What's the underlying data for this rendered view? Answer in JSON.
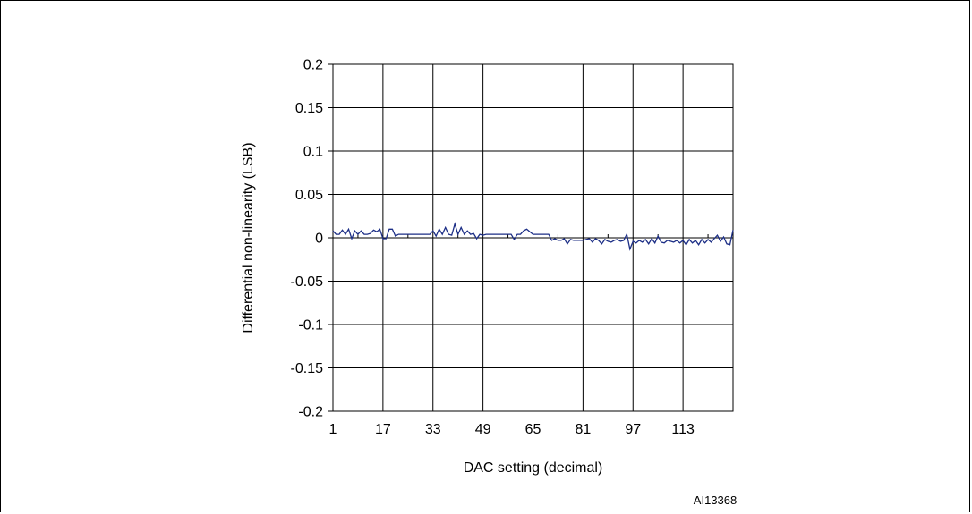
{
  "chart_data": {
    "type": "line",
    "title": "",
    "xlabel": "DAC setting (decimal)",
    "ylabel": "Differential non-linearity (LSB)",
    "xlim": [
      1,
      129
    ],
    "ylim": [
      -0.2,
      0.2
    ],
    "x_ticks": [
      1,
      17,
      33,
      49,
      65,
      81,
      97,
      113
    ],
    "x_tick_labels": [
      "1",
      "17",
      "33",
      "49",
      "65",
      "81",
      "97",
      "113"
    ],
    "y_ticks": [
      0.2,
      0.15,
      0.1,
      0.05,
      0,
      -0.05,
      -0.1,
      -0.15,
      -0.2
    ],
    "y_tick_labels": [
      "0.2",
      "0.15",
      "0.1",
      "0.05",
      "0",
      "-0.05",
      "-0.1",
      "-0.15",
      "-0.2"
    ],
    "grid": true,
    "line_color": "#1c2e86",
    "series": [
      {
        "x": [
          1,
          2,
          3,
          4,
          5,
          6,
          7,
          8,
          9,
          10,
          11,
          12,
          13,
          14,
          15,
          16,
          17,
          18,
          19,
          20,
          21,
          22,
          23,
          24,
          25,
          26,
          27,
          28,
          29,
          30,
          31,
          32,
          33,
          34,
          35,
          36,
          37,
          38,
          39,
          40,
          41,
          42,
          43,
          44,
          45,
          46,
          47,
          48,
          49,
          50,
          51,
          52,
          53,
          54,
          55,
          56,
          57,
          58,
          59,
          60,
          61,
          62,
          63,
          64,
          65,
          66,
          67,
          68,
          69,
          70,
          71,
          72,
          73,
          74,
          75,
          76,
          77,
          78,
          79,
          80,
          81,
          82,
          83,
          84,
          85,
          86,
          87,
          88,
          89,
          90,
          91,
          92,
          93,
          94,
          95,
          96,
          97,
          98,
          99,
          100,
          101,
          102,
          103,
          104,
          105,
          106,
          107,
          108,
          109,
          110,
          111,
          112,
          113,
          114,
          115,
          116,
          117,
          118,
          119,
          120,
          121,
          122,
          123,
          124,
          125,
          126,
          127,
          128,
          129
        ],
        "values": [
          0.008,
          0.004,
          0.004,
          0.009,
          0.004,
          0.01,
          -0.001,
          0.008,
          0.004,
          0.008,
          0.004,
          0.004,
          0.005,
          0.009,
          0.007,
          0.01,
          -0.001,
          -0.001,
          0.01,
          0.01,
          0.002,
          0.004,
          0.004,
          0.004,
          0.004,
          0.004,
          0.004,
          0.004,
          0.004,
          0.004,
          0.004,
          0.004,
          0.008,
          0.002,
          0.01,
          0.004,
          0.012,
          0.004,
          0.003,
          0.016,
          0.004,
          0.012,
          0.004,
          0.008,
          0.004,
          0.005,
          -0.001,
          0.004,
          0.003,
          0.004,
          0.004,
          0.004,
          0.004,
          0.004,
          0.004,
          0.004,
          0.004,
          0.004,
          -0.002,
          0.004,
          0.004,
          0.008,
          0.01,
          0.007,
          0.004,
          0.004,
          0.004,
          0.004,
          0.004,
          0.004,
          -0.003,
          -0.001,
          -0.003,
          -0.003,
          -0.001,
          -0.007,
          -0.002,
          -0.003,
          -0.003,
          -0.003,
          -0.003,
          -0.002,
          -0.001,
          -0.005,
          -0.001,
          -0.003,
          -0.007,
          -0.002,
          -0.004,
          -0.005,
          -0.003,
          -0.002,
          -0.004,
          -0.003,
          0.004,
          -0.013,
          -0.004,
          -0.006,
          -0.003,
          -0.005,
          -0.002,
          -0.007,
          -0.001,
          -0.006,
          0.002,
          -0.005,
          -0.006,
          -0.003,
          -0.004,
          -0.005,
          -0.003,
          -0.006,
          -0.003,
          -0.008,
          -0.002,
          -0.006,
          -0.003,
          -0.008,
          -0.002,
          -0.006,
          -0.002,
          -0.005,
          -0.001,
          0.003,
          -0.004,
          0.001,
          -0.007,
          -0.008,
          0.009
        ]
      }
    ]
  },
  "figure_id": "AI13368"
}
